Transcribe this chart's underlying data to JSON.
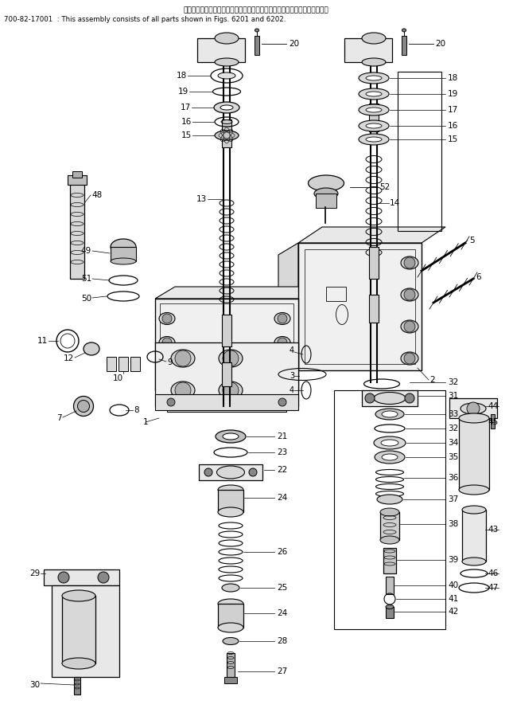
{
  "title_jp": "このアセンブリの構成部品は第６２０１図および第６２０２図を含みます；",
  "title_en": "700-82-17001  : This assembly consists of all parts shown in Figs. 6201 and 6202.",
  "bg_color": "#ffffff",
  "lc": "#000000",
  "tc": "#000000",
  "fig_width": 6.45,
  "fig_height": 8.99,
  "dpi": 100
}
